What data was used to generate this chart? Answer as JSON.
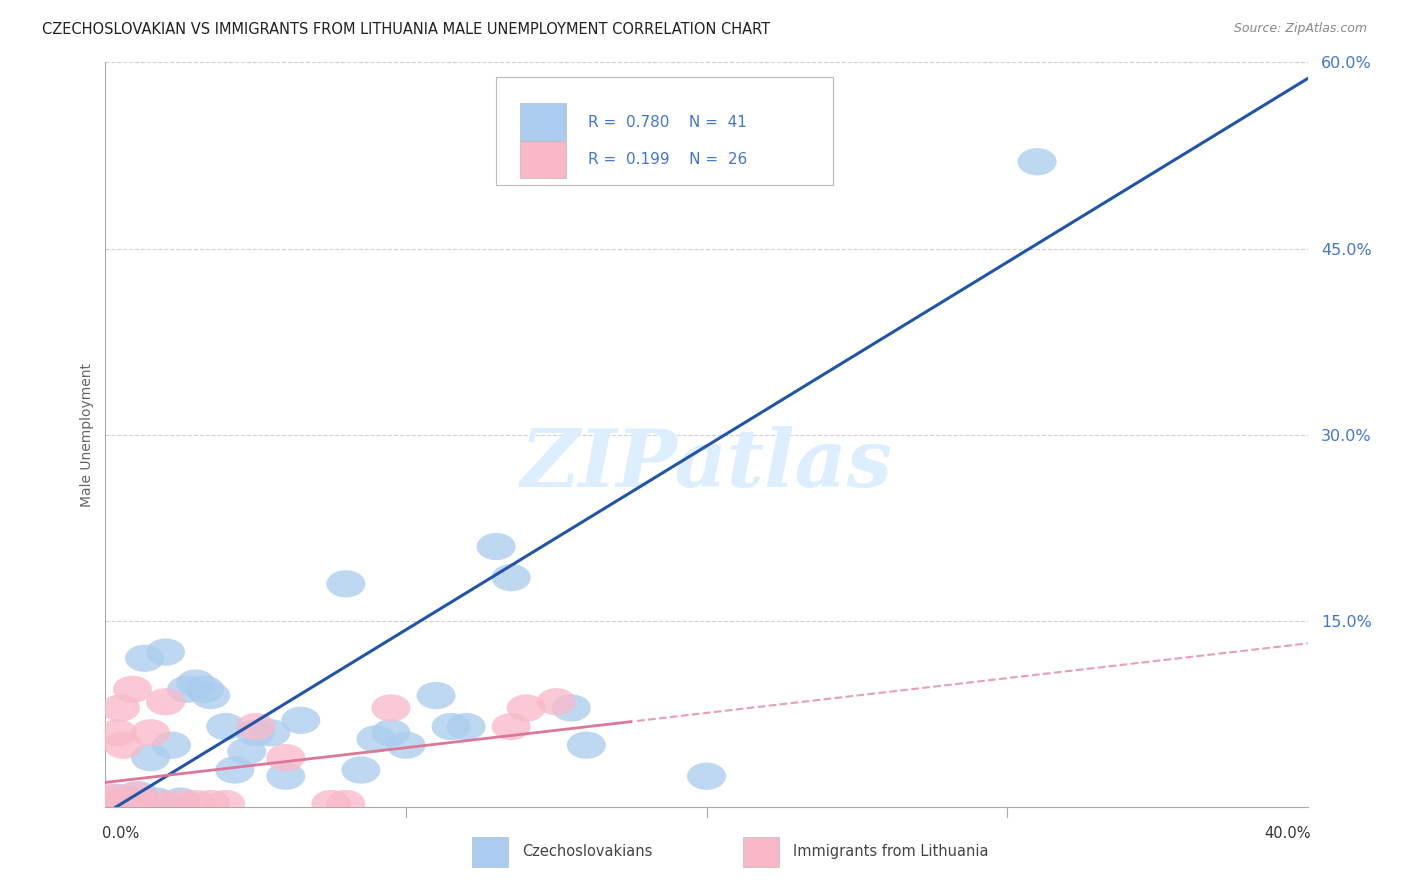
{
  "title": "CZECHOSLOVAKIAN VS IMMIGRANTS FROM LITHUANIA MALE UNEMPLOYMENT CORRELATION CHART",
  "source": "Source: ZipAtlas.com",
  "ylabel": "Male Unemployment",
  "blue_R": 0.78,
  "blue_N": 41,
  "pink_R": 0.199,
  "pink_N": 26,
  "blue_color": "#aaccee",
  "blue_line_color": "#2255aa",
  "pink_color": "#f9b8c8",
  "pink_line_color": "#dd7799",
  "watermark": "ZIPatlas",
  "legend_label_blue": "Czechoslovakians",
  "legend_label_pink": "Immigrants from Lithuania",
  "blue_scatter_x": [
    0.002,
    0.003,
    0.004,
    0.005,
    0.006,
    0.007,
    0.008,
    0.009,
    0.01,
    0.011,
    0.013,
    0.015,
    0.017,
    0.02,
    0.022,
    0.025,
    0.027,
    0.03,
    0.033,
    0.035,
    0.04,
    0.043,
    0.047,
    0.05,
    0.055,
    0.06,
    0.065,
    0.08,
    0.085,
    0.09,
    0.095,
    0.1,
    0.11,
    0.115,
    0.12,
    0.13,
    0.135,
    0.155,
    0.16,
    0.2,
    0.31
  ],
  "blue_scatter_y": [
    0.005,
    0.003,
    0.008,
    0.003,
    0.004,
    0.003,
    0.005,
    0.003,
    0.003,
    0.01,
    0.12,
    0.04,
    0.005,
    0.125,
    0.05,
    0.005,
    0.095,
    0.1,
    0.095,
    0.09,
    0.065,
    0.03,
    0.045,
    0.06,
    0.06,
    0.025,
    0.07,
    0.18,
    0.03,
    0.055,
    0.06,
    0.05,
    0.09,
    0.065,
    0.065,
    0.21,
    0.185,
    0.08,
    0.05,
    0.025,
    0.52
  ],
  "pink_scatter_x": [
    0.001,
    0.002,
    0.003,
    0.004,
    0.005,
    0.006,
    0.007,
    0.008,
    0.009,
    0.01,
    0.012,
    0.015,
    0.018,
    0.02,
    0.025,
    0.03,
    0.035,
    0.04,
    0.05,
    0.06,
    0.075,
    0.08,
    0.095,
    0.135,
    0.14,
    0.15
  ],
  "pink_scatter_y": [
    0.005,
    0.008,
    0.003,
    0.06,
    0.08,
    0.05,
    0.003,
    0.003,
    0.095,
    0.01,
    0.003,
    0.06,
    0.003,
    0.085,
    0.003,
    0.003,
    0.003,
    0.003,
    0.065,
    0.04,
    0.003,
    0.003,
    0.08,
    0.065,
    0.08,
    0.085
  ],
  "xlim": [
    0.0,
    0.4
  ],
  "ylim": [
    0.0,
    0.6
  ],
  "background_color": "#ffffff",
  "grid_color": "#cccccc",
  "blue_line_slope": 1.48,
  "blue_line_intercept": -0.005,
  "pink_line_slope": 0.28,
  "pink_line_intercept": 0.02
}
